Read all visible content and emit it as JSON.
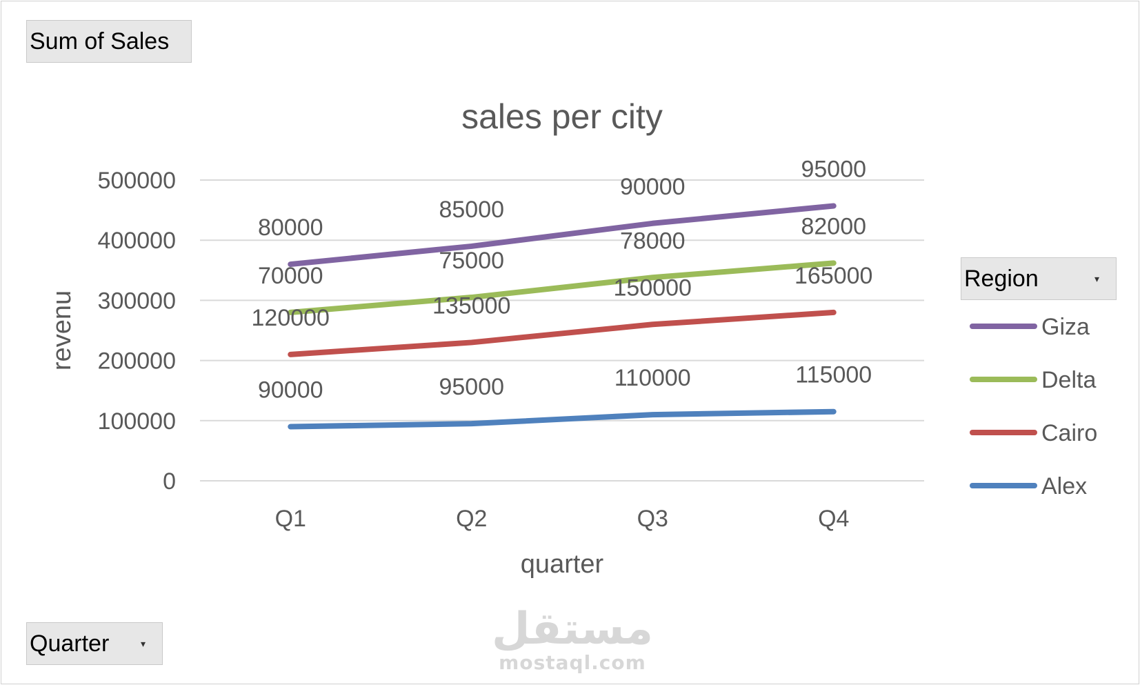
{
  "pivot": {
    "values_field": "Sum of Sales",
    "axis_field": "Quarter",
    "legend_field": "Region"
  },
  "watermark": {
    "arabic": "مستقل",
    "latin": "mostaql.com"
  },
  "chart_data": {
    "type": "line",
    "title": "sales per city",
    "xlabel": "quarter",
    "ylabel": "revenu",
    "stacked": true,
    "categories": [
      "Q1",
      "Q2",
      "Q3",
      "Q4"
    ],
    "ylim": [
      0,
      500000
    ],
    "yticks": [
      0,
      100000,
      200000,
      300000,
      400000,
      500000
    ],
    "grid": true,
    "legend_position": "right",
    "series": [
      {
        "name": "Giza",
        "color": "#8064a2",
        "values": [
          80000,
          85000,
          90000,
          95000
        ]
      },
      {
        "name": "Delta",
        "color": "#9bbb59",
        "values": [
          70000,
          75000,
          78000,
          82000
        ]
      },
      {
        "name": "Cairo",
        "color": "#c0504d",
        "values": [
          120000,
          135000,
          150000,
          165000
        ]
      },
      {
        "name": "Alex",
        "color": "#4f81bd",
        "values": [
          90000,
          95000,
          110000,
          115000
        ]
      }
    ]
  }
}
